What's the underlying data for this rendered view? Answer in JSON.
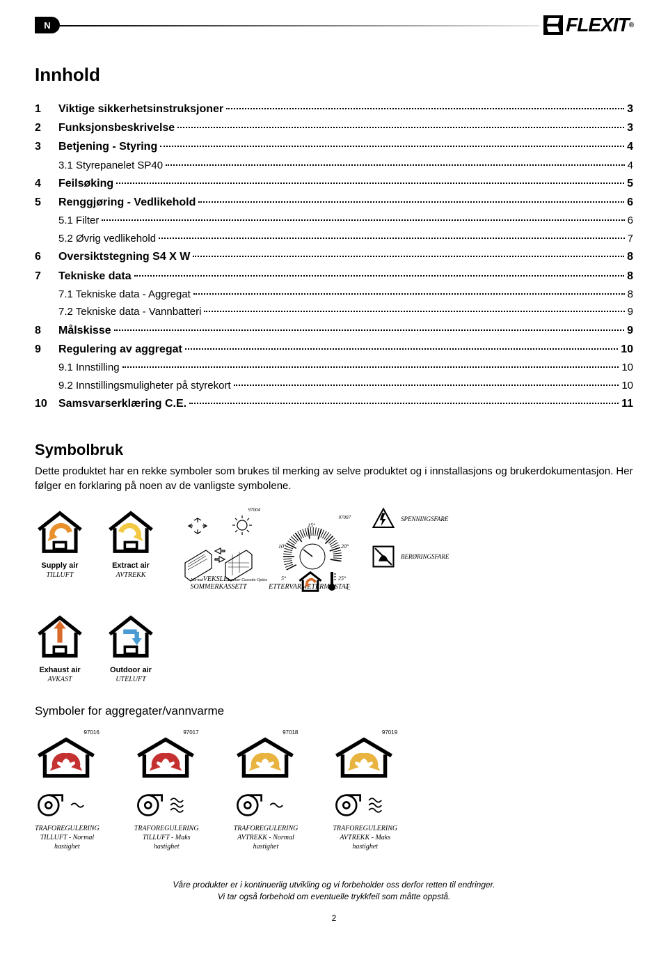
{
  "header": {
    "badge": "N",
    "brand": "FLEXIT"
  },
  "toc_title": "Innhold",
  "toc": [
    {
      "num": "1",
      "label": "Viktige sikkerhetsinstruksjoner",
      "page": "3",
      "sub": false
    },
    {
      "num": "2",
      "label": "Funksjonsbeskrivelse",
      "page": "3",
      "sub": false
    },
    {
      "num": "3",
      "label": "Betjening - Styring",
      "page": "4",
      "sub": false
    },
    {
      "num": "",
      "label": "3.1 Styrepanelet SP40",
      "page": "4",
      "sub": true
    },
    {
      "num": "4",
      "label": "Feilsøking",
      "page": "5",
      "sub": false
    },
    {
      "num": "5",
      "label": "Renggjøring - Vedlikehold",
      "page": "6",
      "sub": false
    },
    {
      "num": "",
      "label": "5.1 Filter",
      "page": "6",
      "sub": true
    },
    {
      "num": "",
      "label": "5.2 Øvrig vedlikehold",
      "page": "7",
      "sub": true
    },
    {
      "num": "6",
      "label": "Oversiktstegning S4 X W",
      "page": "8",
      "sub": false
    },
    {
      "num": "7",
      "label": "Tekniske data",
      "page": "8",
      "sub": false
    },
    {
      "num": "",
      "label": "7.1 Tekniske data - Aggregat",
      "page": "8",
      "sub": true
    },
    {
      "num": "",
      "label": "7.2 Tekniske data - Vannbatteri",
      "page": "9",
      "sub": true
    },
    {
      "num": "8",
      "label": "Målskisse",
      "page": "9",
      "sub": false
    },
    {
      "num": "9",
      "label": "Regulering av aggregat",
      "page": "10",
      "sub": false
    },
    {
      "num": "",
      "label": "9.1 Innstilling",
      "page": "10",
      "sub": true
    },
    {
      "num": "",
      "label": "9.2 Innstillingsmuligheter på styrekort",
      "page": "10",
      "sub": true
    },
    {
      "num": "10",
      "label": "Samsvarserklæring C.E.",
      "page": "11",
      "sub": false
    }
  ],
  "symbol_heading": "Symbolbruk",
  "symbol_text": "Dette produktet har en rekke symboler som brukes til merking av selve produktet og i innstallasjons og brukerdokumentasjon. Her følger en forklaring på noen av de vanligste symbolene.",
  "icons": {
    "supply": {
      "bold": "Supply air",
      "italic": "TILLUFT",
      "arrow_color": "#e8912c"
    },
    "extract": {
      "bold": "Extract air",
      "italic": "AVTREKK",
      "arrow_color": "#f3c843"
    },
    "exhaust": {
      "bold": "Exhaust air",
      "italic": "AVKAST",
      "arrow_color": "#d96b2a"
    },
    "outdoor": {
      "bold": "Outdoor air",
      "italic": "UTELUFT",
      "arrow_color": "#4a9bd4"
    },
    "veksler": "VEKSLER/\nSOMMERKASSETT",
    "ettervarme": "ETTERVARMETERMOSTAT",
    "spenning": "SPENNINGSFARE",
    "beroring": "BERØRINGSFARE",
    "dial_ticks": [
      "5°",
      "10°",
      "15°",
      "20°",
      "25°"
    ],
    "dial_code": "97007",
    "veksler_code": "97004"
  },
  "section2_title": "Symboler for aggregater/vannvarme",
  "aggregates": [
    {
      "code": "97016",
      "arrow": "#c53030",
      "wave": "single",
      "label": "TRAFOREGULERING\nTILLUFT - Normal\nhastighet"
    },
    {
      "code": "97017",
      "arrow": "#c53030",
      "wave": "triple",
      "label": "TRAFOREGULERING\nTILLUFT - Maks\nhastighet"
    },
    {
      "code": "97018",
      "arrow": "#e8b33f",
      "wave": "single",
      "label": "TRAFOREGULERING\nAVTREKK - Normal\nhastighet"
    },
    {
      "code": "97019",
      "arrow": "#e8b33f",
      "wave": "triple",
      "label": "TRAFOREGULERING\nAVTREKK - Maks\nhastighet"
    }
  ],
  "footer": {
    "line1": "Våre produkter er i kontinuerlig utvikling og vi forbeholder oss derfor retten til endringer.",
    "line2": "Vi tar også forbehold om eventuelle trykkfeil som måtte oppstå."
  },
  "page_number": "2",
  "colors": {
    "black": "#000000",
    "white": "#ffffff"
  }
}
